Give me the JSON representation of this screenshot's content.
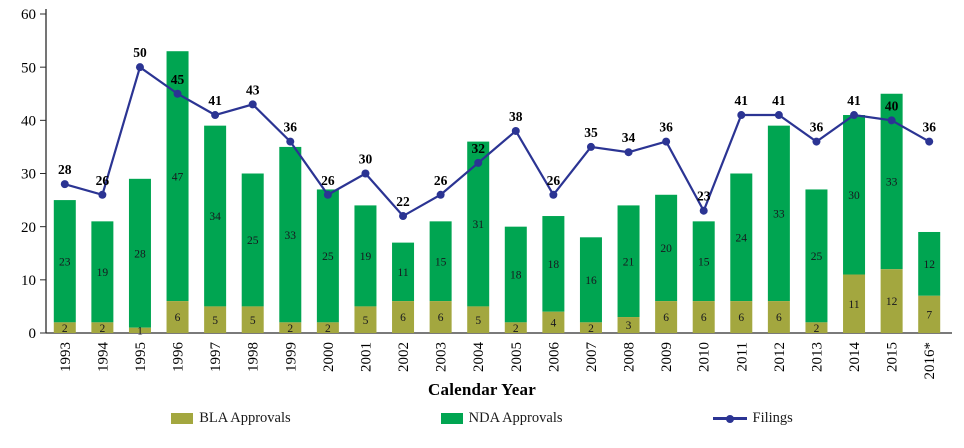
{
  "chart_data": {
    "type": "bar",
    "subtype": "stacked-bars-with-line-overlay",
    "title": "",
    "xlabel": "Calendar Year",
    "ylabel": "",
    "ylim": [
      0,
      60
    ],
    "yticks": [
      0,
      10,
      20,
      30,
      40,
      50,
      60
    ],
    "grid": false,
    "legend_position": "bottom",
    "categories": [
      "1993",
      "1994",
      "1995",
      "1996",
      "1997",
      "1998",
      "1999",
      "2000",
      "2001",
      "2002",
      "2003",
      "2004",
      "2005",
      "2006",
      "2007",
      "2008",
      "2009",
      "2010",
      "2011",
      "2012",
      "2013",
      "2014",
      "2015",
      "2016*"
    ],
    "series": [
      {
        "name": "BLA Approvals",
        "type": "bar",
        "stacked": true,
        "color": "#a3a73f",
        "values": [
          2,
          2,
          1,
          6,
          5,
          5,
          2,
          2,
          5,
          6,
          6,
          5,
          2,
          4,
          2,
          3,
          6,
          6,
          6,
          6,
          2,
          11,
          12,
          7
        ]
      },
      {
        "name": "NDA Approvals",
        "type": "bar",
        "stacked": true,
        "color": "#00a551",
        "values": [
          23,
          19,
          28,
          47,
          34,
          25,
          33,
          25,
          19,
          11,
          15,
          31,
          18,
          18,
          16,
          21,
          20,
          15,
          24,
          33,
          25,
          30,
          33,
          12
        ]
      },
      {
        "name": "Filings",
        "type": "line",
        "marker": "circle",
        "color": "#2b3493",
        "values": [
          28,
          26,
          50,
          45,
          41,
          43,
          36,
          26,
          30,
          22,
          26,
          32,
          38,
          26,
          35,
          34,
          36,
          23,
          41,
          41,
          36,
          41,
          40,
          36
        ]
      }
    ]
  }
}
